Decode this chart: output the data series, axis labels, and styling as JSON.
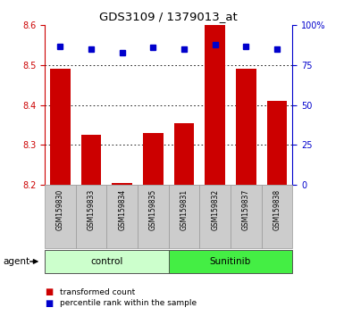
{
  "title": "GDS3109 / 1379013_at",
  "samples": [
    "GSM159830",
    "GSM159833",
    "GSM159834",
    "GSM159835",
    "GSM159831",
    "GSM159832",
    "GSM159837",
    "GSM159838"
  ],
  "red_values": [
    8.49,
    8.325,
    8.205,
    8.33,
    8.355,
    8.605,
    8.49,
    8.41
  ],
  "blue_values": [
    87,
    85,
    83,
    86,
    85,
    88,
    87,
    85
  ],
  "ylim_left": [
    8.2,
    8.6
  ],
  "ylim_right": [
    0,
    100
  ],
  "yticks_left": [
    8.2,
    8.3,
    8.4,
    8.5,
    8.6
  ],
  "yticks_right": [
    0,
    25,
    50,
    75,
    100
  ],
  "ytick_right_labels": [
    "0",
    "25",
    "50",
    "75",
    "100%"
  ],
  "groups": [
    {
      "label": "control",
      "indices": [
        0,
        1,
        2,
        3
      ],
      "color": "#ccffcc"
    },
    {
      "label": "Sunitinib",
      "indices": [
        4,
        5,
        6,
        7
      ],
      "color": "#44ee44"
    }
  ],
  "bar_color": "#cc0000",
  "dot_color": "#0000cc",
  "bar_bottom": 8.2,
  "tick_color_left": "#cc0000",
  "tick_color_right": "#0000cc",
  "sample_bg_color": "#cccccc",
  "legend_red_label": "transformed count",
  "legend_blue_label": "percentile rank within the sample",
  "agent_label": "agent",
  "bar_width": 0.65
}
